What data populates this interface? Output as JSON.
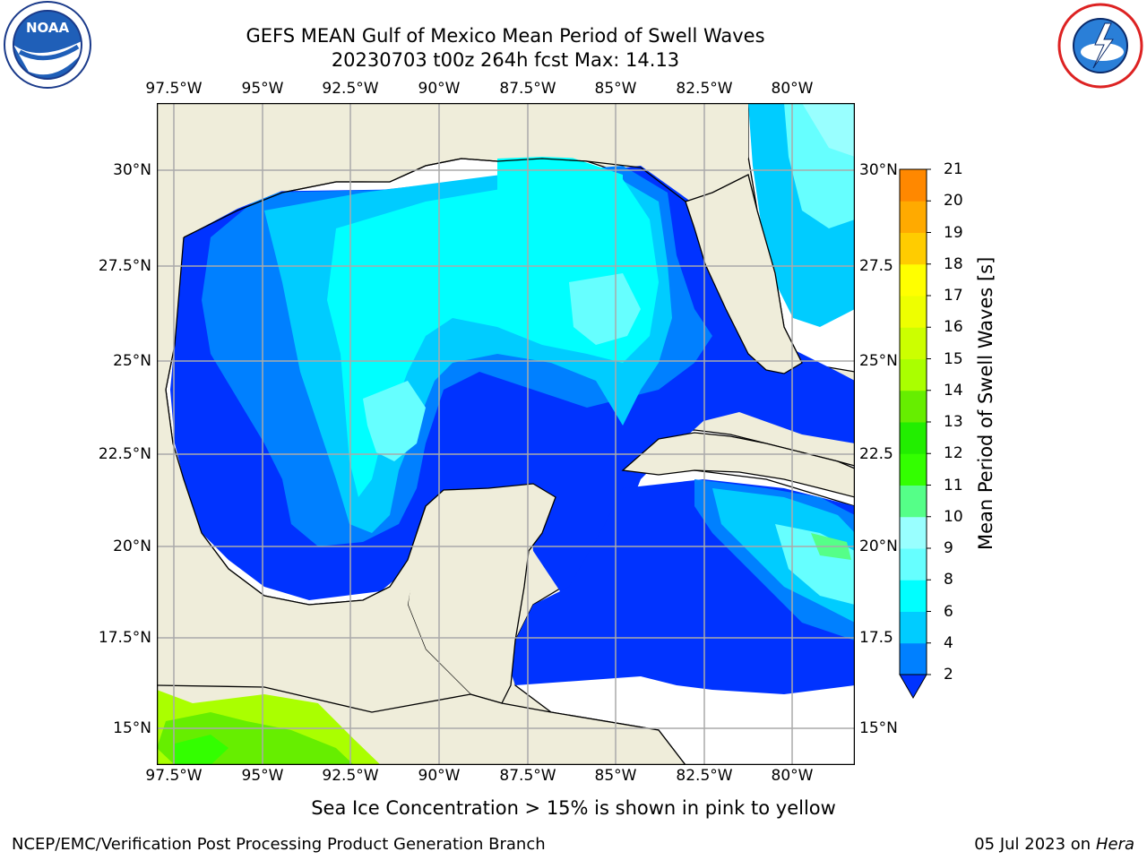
{
  "header": {
    "title_line1": "GEFS MEAN Gulf of Mexico Mean Period of Swell Waves",
    "title_line2": "20230703 t00z 264h fcst   Max: 14.13"
  },
  "logos": {
    "left": "noaa-logo",
    "right": "nws-logo"
  },
  "map": {
    "lon_labels": [
      "97.5°W",
      "95°W",
      "92.5°W",
      "90°W",
      "87.5°W",
      "85°W",
      "82.5°W",
      "80°W"
    ],
    "lat_labels_left": [
      "30°N",
      "27.5°N",
      "25°N",
      "22.5°N",
      "20°N",
      "17.5°N",
      "15°N"
    ],
    "lat_labels_right": [
      "30°N",
      "27.5",
      "25°N",
      "22.5",
      "20°N",
      "17.5",
      "15°N"
    ],
    "colors": {
      "land": "#efedda",
      "ocean_none": "#ffffff",
      "grid": "#aaaaaa"
    }
  },
  "colorbar": {
    "label": "Mean Period of Swell Waves [s]",
    "ticks": [
      "2",
      "4",
      "6",
      "8",
      "9",
      "10",
      "11",
      "12",
      "13",
      "14",
      "15",
      "16",
      "17",
      "18",
      "19",
      "20",
      "21"
    ],
    "colors": [
      "#0033ff",
      "#0080ff",
      "#00ccff",
      "#00ffff",
      "#66ffff",
      "#99ffff",
      "#55ff88",
      "#33ff00",
      "#22ee00",
      "#66ee00",
      "#aaff00",
      "#ccff00",
      "#eeff00",
      "#ffff00",
      "#ffcc00",
      "#ffaa00",
      "#ff8800",
      "#ff5500",
      "#ff2200",
      "#ff0000"
    ]
  },
  "note": "Sea Ice Concentration > 15% is shown in pink to yellow",
  "footer": {
    "left": "NCEP/EMC/Verification Post Processing Product Generation Branch",
    "date": "05 Jul 2023 on ",
    "machine": "Hera"
  }
}
